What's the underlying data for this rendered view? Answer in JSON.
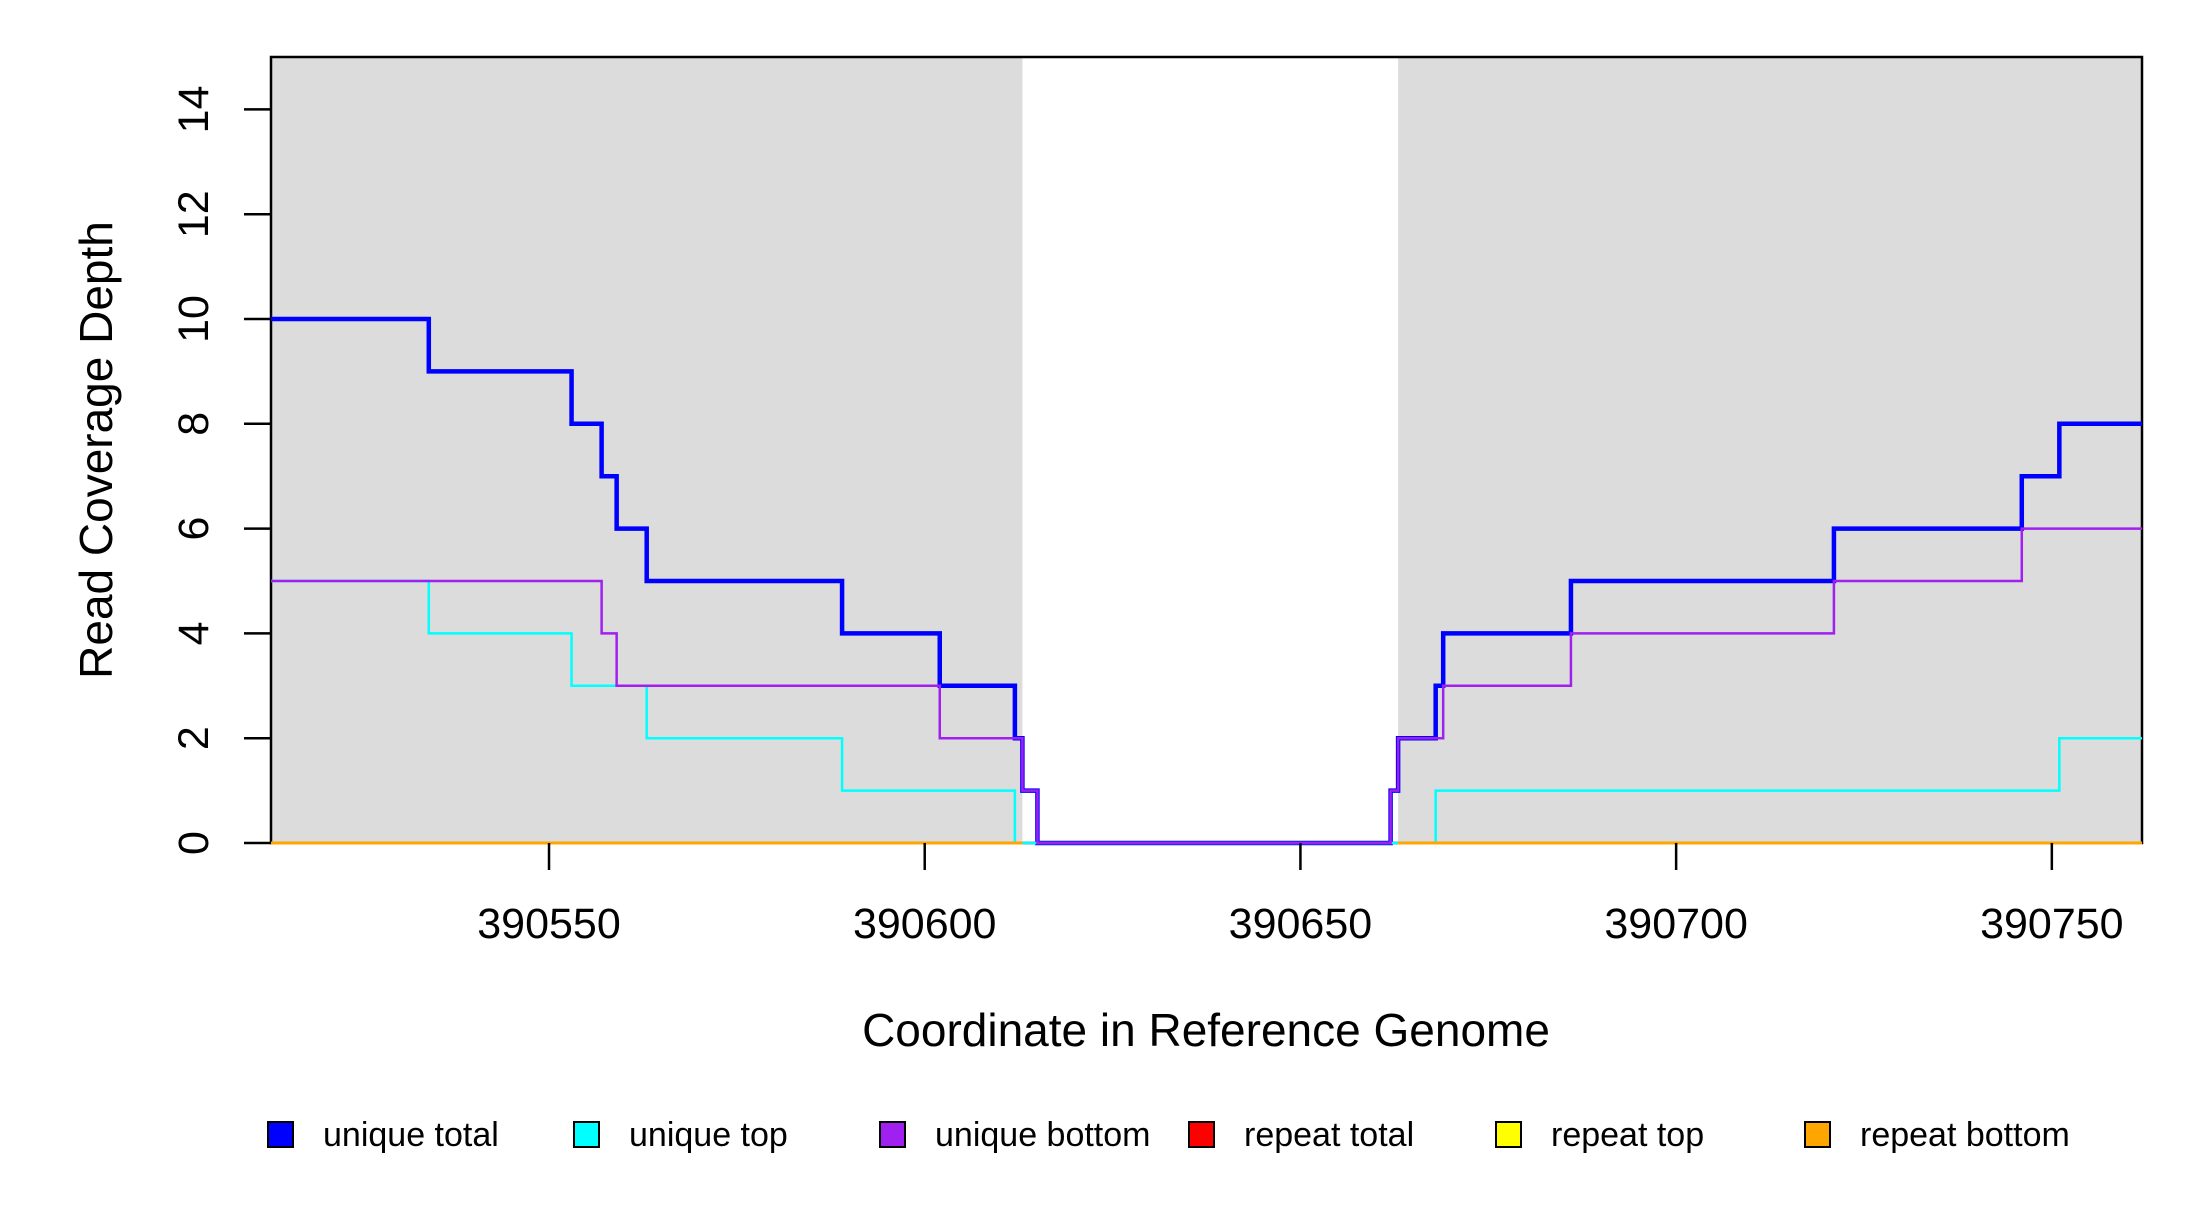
{
  "figure": {
    "background_color": "#ffffff",
    "box_color": "#000000",
    "shaded_region_color": "#dcdcdc"
  },
  "chart_data": {
    "type": "line",
    "subtype": "step-coverage",
    "title": "",
    "xlabel": "Coordinate in Reference Genome",
    "ylabel": "Read Coverage Depth",
    "xlim": [
      390513,
      390762
    ],
    "ylim": [
      0,
      15
    ],
    "x_ticks": [
      390550,
      390600,
      390650,
      390700,
      390750
    ],
    "y_ticks": [
      0,
      2,
      4,
      6,
      8,
      10,
      12,
      14
    ],
    "grid": false,
    "legend_position": "bottom",
    "background_regions": [
      {
        "name": "left-shaded-region",
        "x0": 390513,
        "x1": 390613,
        "color": "#dcdcdc"
      },
      {
        "name": "right-shaded-region",
        "x0": 390663,
        "x1": 390762,
        "color": "#dcdcdc"
      }
    ],
    "series": [
      {
        "name": "unique total",
        "color": "#0000ff",
        "start": [
          390513,
          10
        ],
        "steps": [
          [
            390534,
            9
          ],
          [
            390553,
            8
          ],
          [
            390557,
            7
          ],
          [
            390559,
            6
          ],
          [
            390563,
            5
          ],
          [
            390589,
            4
          ],
          [
            390602,
            3
          ],
          [
            390612,
            2
          ],
          [
            390613,
            1
          ],
          [
            390615,
            0
          ],
          [
            390662,
            1
          ],
          [
            390663,
            2
          ],
          [
            390668,
            3
          ],
          [
            390669,
            4
          ],
          [
            390686,
            5
          ],
          [
            390721,
            6
          ],
          [
            390746,
            7
          ],
          [
            390751,
            8
          ]
        ],
        "end": 390762
      },
      {
        "name": "unique top",
        "color": "#00ffff",
        "start": [
          390513,
          5
        ],
        "steps": [
          [
            390534,
            4
          ],
          [
            390553,
            3
          ],
          [
            390563,
            2
          ],
          [
            390589,
            1
          ],
          [
            390612,
            0
          ],
          [
            390668,
            1
          ],
          [
            390751,
            2
          ]
        ],
        "end": 390762
      },
      {
        "name": "unique bottom",
        "color": "#a020f0",
        "start": [
          390513,
          5
        ],
        "steps": [
          [
            390557,
            4
          ],
          [
            390559,
            3
          ],
          [
            390602,
            2
          ],
          [
            390613,
            1
          ],
          [
            390615,
            0
          ],
          [
            390662,
            1
          ],
          [
            390663,
            2
          ],
          [
            390669,
            3
          ],
          [
            390686,
            4
          ],
          [
            390721,
            5
          ],
          [
            390746,
            6
          ]
        ],
        "end": 390762
      },
      {
        "name": "repeat total",
        "color": "#ff0000",
        "value": 0,
        "segments": [
          [
            390513,
            390613
          ],
          [
            390663,
            390762
          ]
        ]
      },
      {
        "name": "repeat top",
        "color": "#ffff00",
        "value": 0,
        "segments": [
          [
            390513,
            390613
          ],
          [
            390663,
            390762
          ]
        ]
      },
      {
        "name": "repeat bottom",
        "color": "#ffa500",
        "value": 0,
        "segments": [
          [
            390513,
            390613
          ],
          [
            390663,
            390762
          ]
        ]
      }
    ],
    "legend": [
      {
        "label": "unique total",
        "color": "#0000ff"
      },
      {
        "label": "unique top",
        "color": "#00ffff"
      },
      {
        "label": "unique bottom",
        "color": "#a020f0"
      },
      {
        "label": "repeat total",
        "color": "#ff0000"
      },
      {
        "label": "repeat top",
        "color": "#ffff00"
      },
      {
        "label": "repeat bottom",
        "color": "#ffa500"
      }
    ]
  }
}
